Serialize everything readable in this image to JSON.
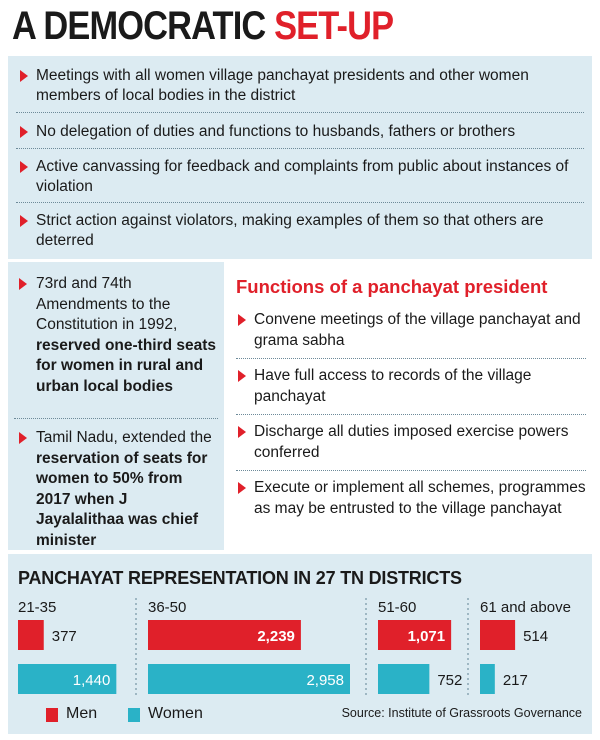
{
  "headline": {
    "part1": "A DEMOCRATIC ",
    "part2": "SET-UP"
  },
  "top_bullets": [
    "Meetings with all women village panchayat presidents and other women members of local bodies in the district",
    "No delegation of duties and functions to husbands, fathers or brothers",
    "Active canvassing for feedback and complaints from  public about instances of violation",
    "Strict action against violators, making examples of them so that others are deterred"
  ],
  "left_items": [
    {
      "plain": "73rd and 74th Amendments to the Constitution in 1992,",
      "bold": "reserved one-third seats for women in rural and urban local bodies"
    },
    {
      "plain": "Tamil Nadu, extended the",
      "bold": "reservation of seats for women to 50% from 2017 when J Jayalalithaa was chief minister"
    }
  ],
  "functions": {
    "title": "Functions of a panchayat president",
    "items": [
      "Convene meetings of the village panchayat and grama sabha",
      "Have full access to records of the village panchayat",
      "Discharge all duties imposed exercise powers conferred",
      "Execute or implement all schemes, programmes as may be entrusted to the village panchayat"
    ]
  },
  "chart_data": {
    "type": "bar",
    "title": "PANCHAYAT REPRESENTATION IN 27 TN DISTRICTS",
    "categories": [
      "21-35",
      "36-50",
      "51-60",
      "61 and above"
    ],
    "series": [
      {
        "name": "Men",
        "values": [
          377,
          2239,
          1071,
          514
        ],
        "labels": [
          "377",
          "2,239",
          "1,071",
          "514"
        ]
      },
      {
        "name": "Women",
        "values": [
          1440,
          2958,
          752,
          217
        ],
        "labels": [
          "1,440",
          "2,958",
          "752",
          "217"
        ]
      }
    ],
    "legend": "bottom-left",
    "source": "Source: Institute of Grassroots Governance"
  },
  "colors": {
    "men": "#e0202a",
    "women": "#2ab2c7",
    "accent": "#e0202a",
    "panel": "#dcebf2"
  }
}
